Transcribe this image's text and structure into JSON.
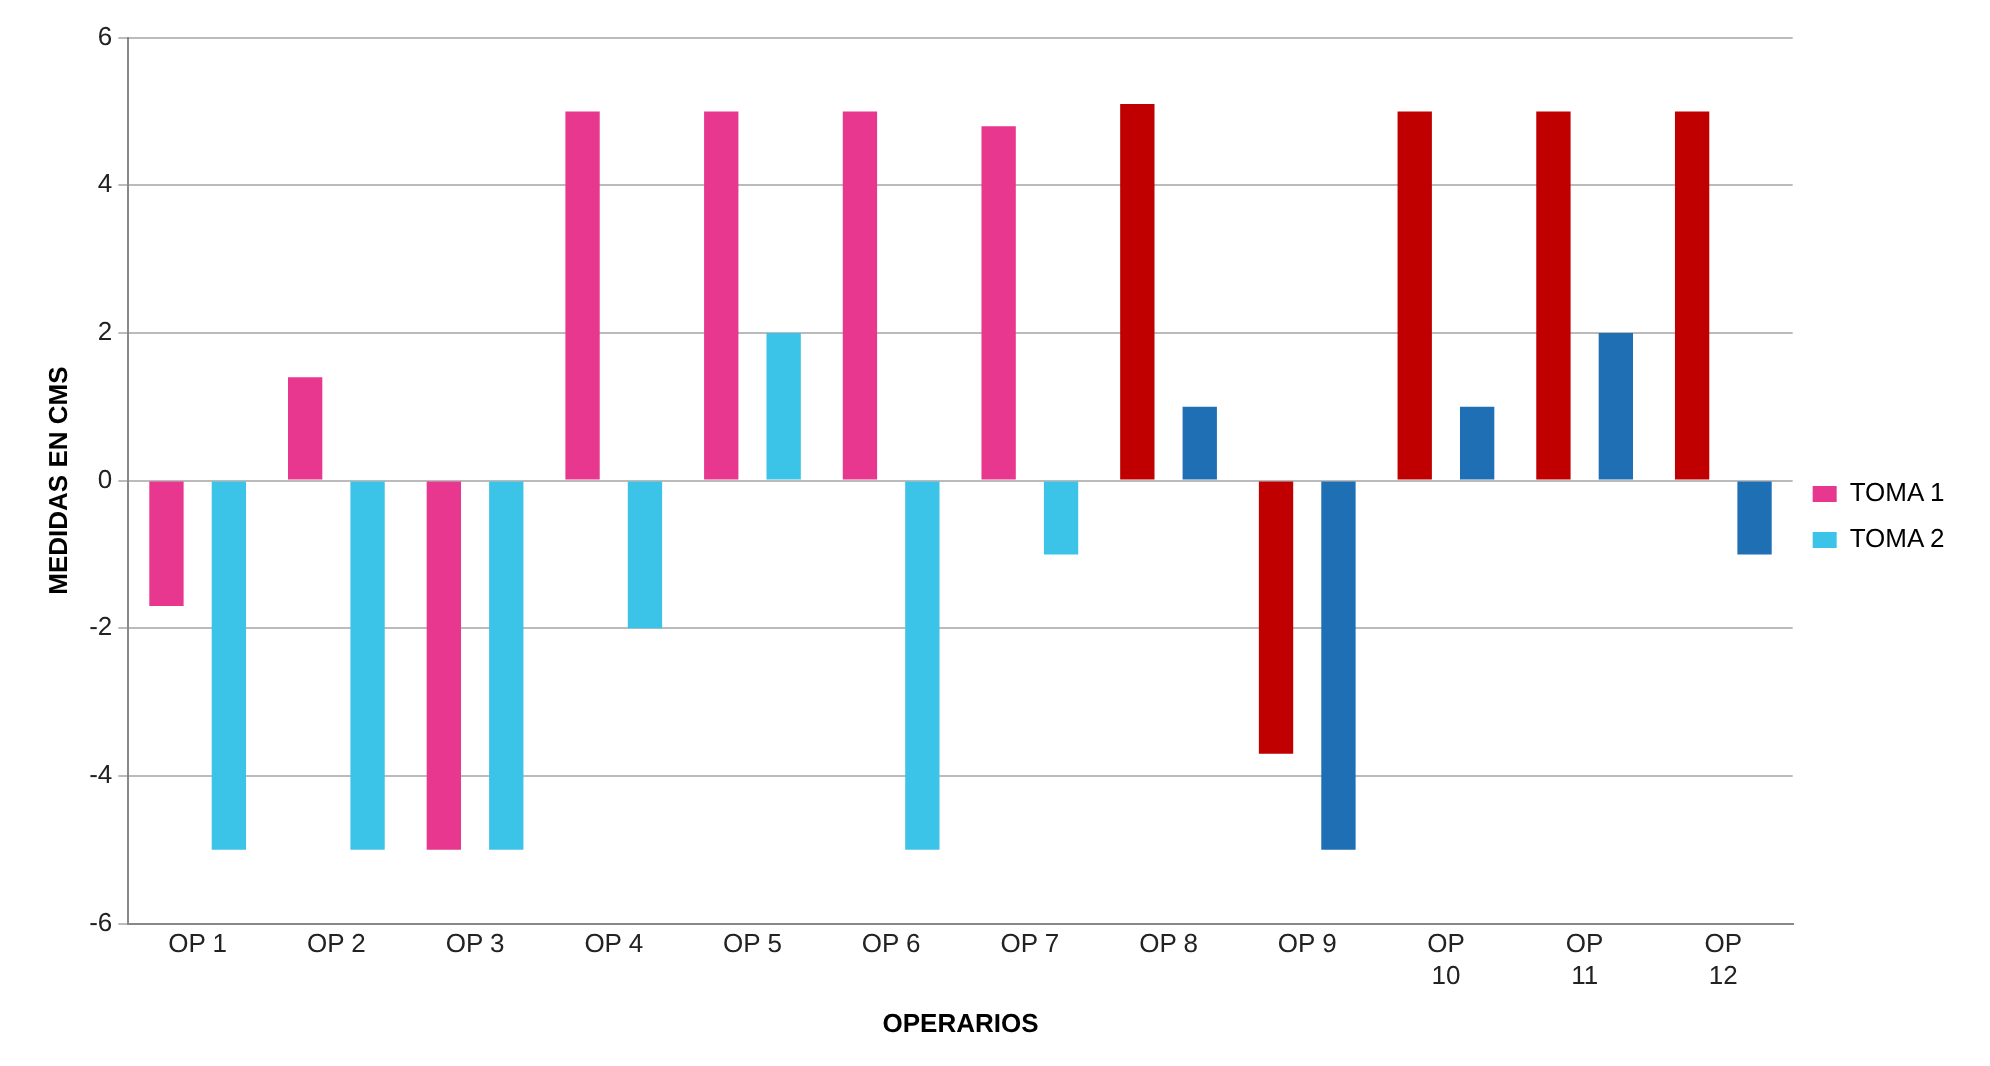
{
  "chart_data": {
    "type": "bar",
    "xlabel": "OPERARIOS",
    "ylabel": "MEDIDAS EN CMS",
    "categories": [
      "OP 1",
      "OP 2",
      "OP 3",
      "OP 4",
      "OP 5",
      "OP 6",
      "OP 7",
      "OP 8",
      "OP 9",
      "OP 10",
      "OP 11",
      "OP 12"
    ],
    "series": [
      {
        "name": "TOMA 1",
        "color": "#e8378f",
        "colors": [
          "#e8378f",
          "#e8378f",
          "#e8378f",
          "#e8378f",
          "#e8378f",
          "#e8378f",
          "#e8378f",
          "#c00000",
          "#c00000",
          "#c00000",
          "#c00000",
          "#c00000"
        ],
        "values": [
          -1.7,
          1.4,
          -5,
          5,
          5,
          5,
          4.8,
          5.1,
          -3.7,
          5,
          5,
          5
        ]
      },
      {
        "name": "TOMA 2",
        "color": "#3cc4e8",
        "colors": [
          "#3cc4e8",
          "#3cc4e8",
          "#3cc4e8",
          "#3cc4e8",
          "#3cc4e8",
          "#3cc4e8",
          "#3cc4e8",
          "#1f6fb5",
          "#1f6fb5",
          "#1f6fb5",
          "#1f6fb5",
          "#1f6fb5"
        ],
        "values": [
          -5,
          -5,
          -5,
          -2,
          2,
          -5,
          -1,
          1,
          -5,
          1,
          2,
          -1
        ]
      }
    ],
    "ylim": [
      -6,
      6
    ],
    "yticks": [
      -6,
      -4,
      -2,
      0,
      2,
      4,
      6
    ],
    "grid": "y",
    "legend": "right"
  }
}
